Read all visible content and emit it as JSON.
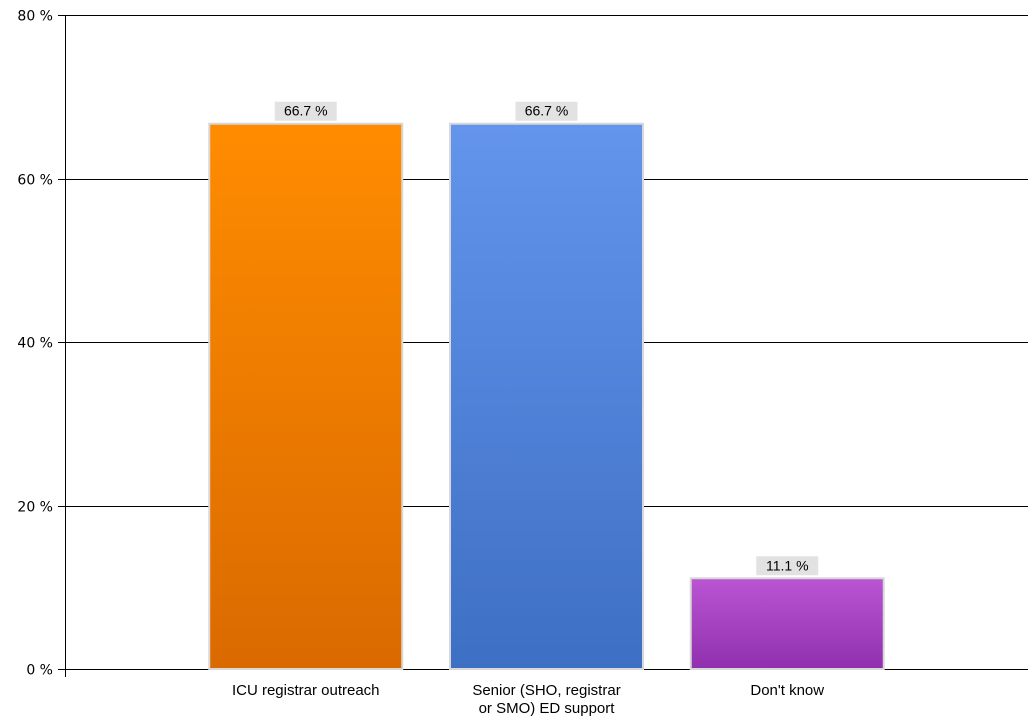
{
  "chart_data": {
    "type": "bar",
    "categories": [
      [
        "ICU registrar outreach"
      ],
      [
        "Senior (SHO, registrar",
        "or SMO) ED support"
      ],
      [
        "Don't know"
      ]
    ],
    "values": [
      66.7,
      66.7,
      11.1
    ],
    "value_labels": [
      "66.7 %",
      "66.7 %",
      "11.1 %"
    ],
    "bar_colors": [
      {
        "top": "#FF8C00",
        "bottom": "#DA6A00"
      },
      {
        "top": "#6495ED",
        "bottom": "#3D6FC4"
      },
      {
        "top": "#BA55D3",
        "bottom": "#9030AE"
      }
    ],
    "ylim": [
      0,
      80
    ],
    "yticks": [
      0,
      20,
      40,
      60,
      80
    ],
    "ytick_labels": [
      "0 %",
      "20 %",
      "40 %",
      "60 %",
      "80 %"
    ],
    "grid": true,
    "title": "",
    "xlabel": "",
    "ylabel": ""
  }
}
